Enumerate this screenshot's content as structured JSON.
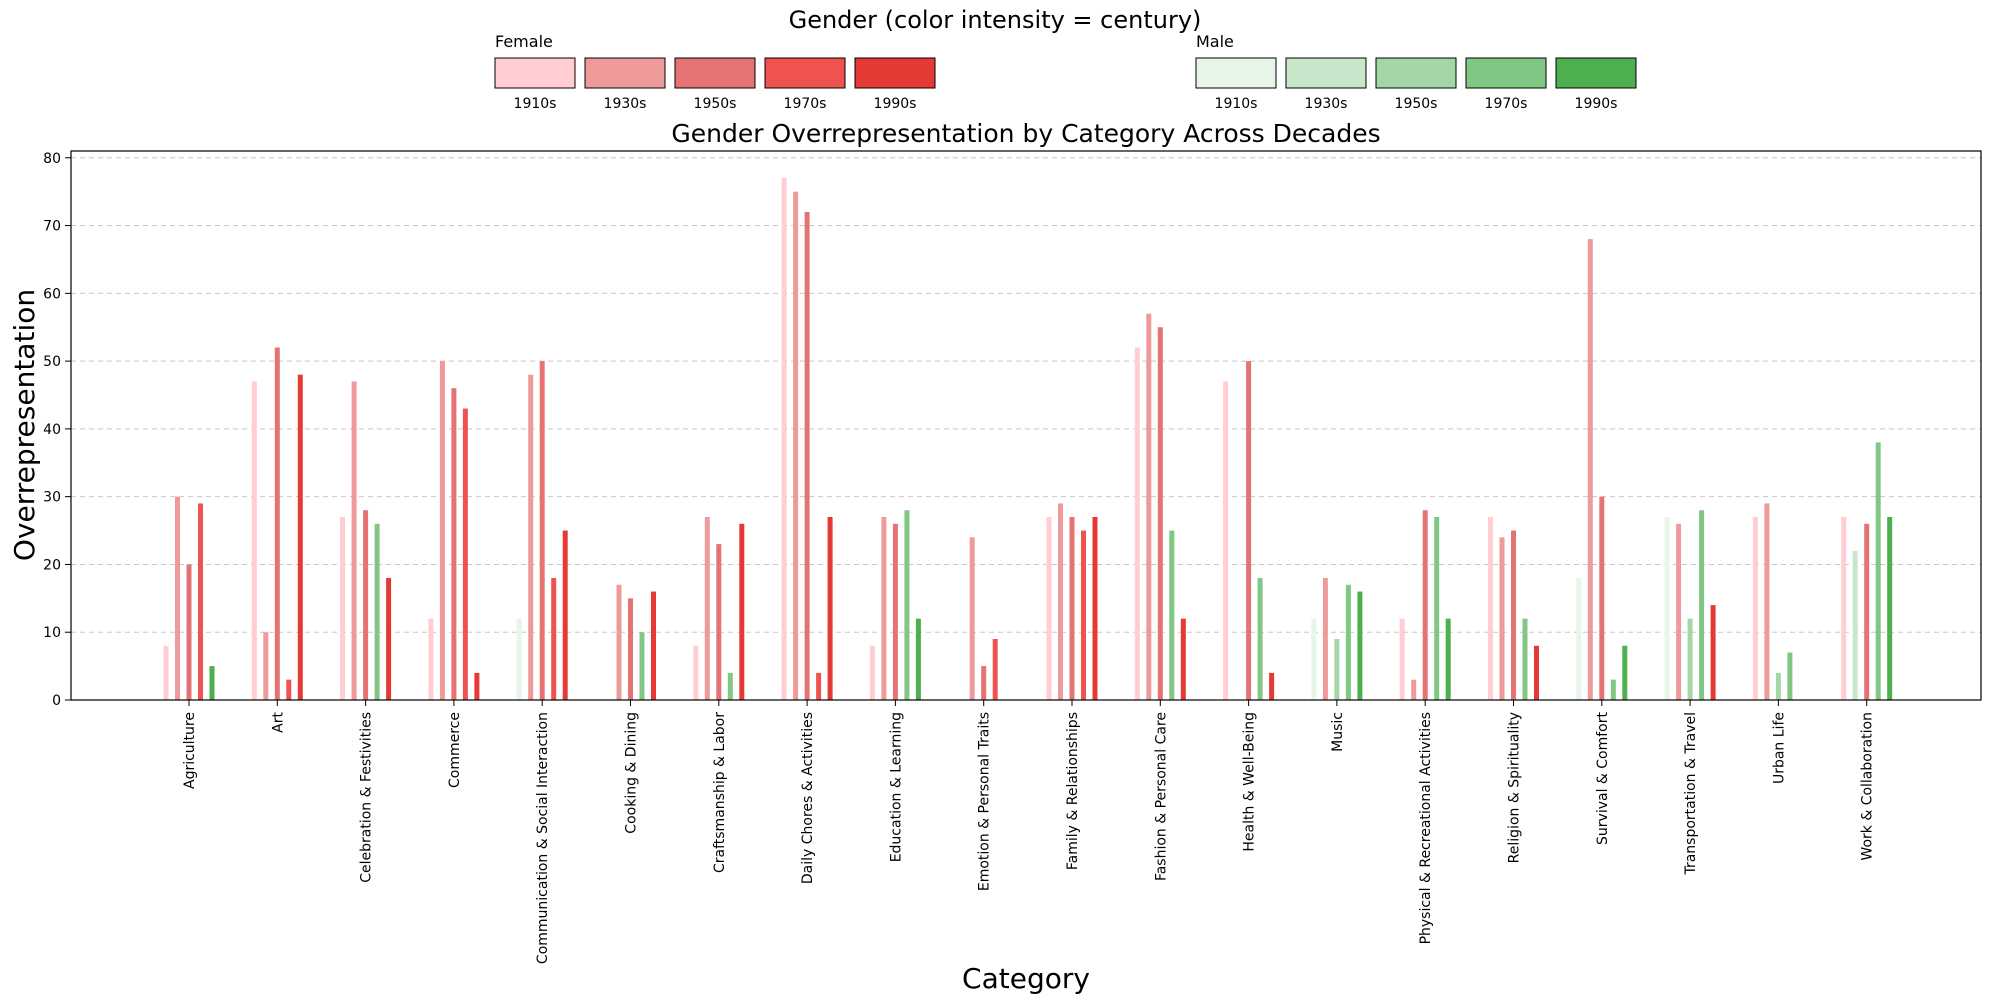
{
  "chart_data": {
    "type": "bar",
    "title": "Gender Overrepresentation by Category Across Decades",
    "xlabel": "Category",
    "ylabel": "Overrepresentation",
    "ylim": [
      0,
      81
    ],
    "yticks": [
      0,
      10,
      20,
      30,
      40,
      50,
      60,
      70,
      80
    ],
    "grid": true,
    "legend": {
      "title": "Gender (color intensity = century)",
      "groups": [
        {
          "name": "Female",
          "decades": [
            "1910s",
            "1930s",
            "1950s",
            "1970s",
            "1990s"
          ],
          "colors": [
            "#ffcdd2",
            "#ef9a9a",
            "#e57373",
            "#ef5350",
            "#e53935"
          ]
        },
        {
          "name": "Male",
          "decades": [
            "1910s",
            "1930s",
            "1950s",
            "1970s",
            "1990s"
          ],
          "colors": [
            "#e8f5e9",
            "#c8e6c9",
            "#a5d6a7",
            "#81c784",
            "#4caf50"
          ]
        }
      ]
    },
    "series_order": [
      "1910s",
      "1930s",
      "1950s",
      "1970s",
      "1990s"
    ],
    "categories": [
      {
        "name": "Agriculture",
        "bars": [
          {
            "g": "F",
            "v": 8
          },
          {
            "g": "F",
            "v": 30
          },
          {
            "g": "F",
            "v": 20
          },
          {
            "g": "F",
            "v": 29
          },
          {
            "g": "M",
            "v": 5
          }
        ]
      },
      {
        "name": "Art",
        "bars": [
          {
            "g": "F",
            "v": 47
          },
          {
            "g": "F",
            "v": 10
          },
          {
            "g": "F",
            "v": 52
          },
          {
            "g": "F",
            "v": 3
          },
          {
            "g": "F",
            "v": 48
          }
        ]
      },
      {
        "name": "Celebration & Festivities",
        "bars": [
          {
            "g": "F",
            "v": 27
          },
          {
            "g": "F",
            "v": 47
          },
          {
            "g": "F",
            "v": 28
          },
          {
            "g": "M",
            "v": 26
          },
          {
            "g": "F",
            "v": 18
          }
        ]
      },
      {
        "name": "Commerce",
        "bars": [
          {
            "g": "F",
            "v": 12
          },
          {
            "g": "F",
            "v": 50
          },
          {
            "g": "F",
            "v": 46
          },
          {
            "g": "F",
            "v": 43
          },
          {
            "g": "F",
            "v": 4
          }
        ]
      },
      {
        "name": "Communication & Social Interaction",
        "bars": [
          {
            "g": "M",
            "v": 12
          },
          {
            "g": "F",
            "v": 48
          },
          {
            "g": "F",
            "v": 50
          },
          {
            "g": "F",
            "v": 18
          },
          {
            "g": "F",
            "v": 25
          }
        ]
      },
      {
        "name": "Cooking & Dining",
        "bars": [
          {
            "g": "F",
            "v": 0
          },
          {
            "g": "F",
            "v": 17
          },
          {
            "g": "F",
            "v": 15
          },
          {
            "g": "M",
            "v": 10
          },
          {
            "g": "F",
            "v": 16
          }
        ]
      },
      {
        "name": "Craftsmanship & Labor",
        "bars": [
          {
            "g": "F",
            "v": 8
          },
          {
            "g": "F",
            "v": 27
          },
          {
            "g": "F",
            "v": 23
          },
          {
            "g": "M",
            "v": 4
          },
          {
            "g": "F",
            "v": 26
          }
        ]
      },
      {
        "name": "Daily Chores & Activities",
        "bars": [
          {
            "g": "F",
            "v": 77
          },
          {
            "g": "F",
            "v": 75
          },
          {
            "g": "F",
            "v": 72
          },
          {
            "g": "F",
            "v": 4
          },
          {
            "g": "F",
            "v": 27
          }
        ]
      },
      {
        "name": "Education & Learning",
        "bars": [
          {
            "g": "F",
            "v": 8
          },
          {
            "g": "F",
            "v": 27
          },
          {
            "g": "F",
            "v": 26
          },
          {
            "g": "M",
            "v": 28
          },
          {
            "g": "M",
            "v": 12
          }
        ]
      },
      {
        "name": "Emotion & Personal Traits",
        "bars": [
          {
            "g": "F",
            "v": 0
          },
          {
            "g": "F",
            "v": 24
          },
          {
            "g": "F",
            "v": 5
          },
          {
            "g": "F",
            "v": 9
          },
          {
            "g": "F",
            "v": 0
          }
        ]
      },
      {
        "name": "Family & Relationships",
        "bars": [
          {
            "g": "F",
            "v": 27
          },
          {
            "g": "F",
            "v": 29
          },
          {
            "g": "F",
            "v": 27
          },
          {
            "g": "F",
            "v": 25
          },
          {
            "g": "F",
            "v": 27
          }
        ]
      },
      {
        "name": "Fashion & Personal Care",
        "bars": [
          {
            "g": "F",
            "v": 52
          },
          {
            "g": "F",
            "v": 57
          },
          {
            "g": "F",
            "v": 55
          },
          {
            "g": "M",
            "v": 25
          },
          {
            "g": "F",
            "v": 12
          }
        ]
      },
      {
        "name": "Health & Well-Being",
        "bars": [
          {
            "g": "F",
            "v": 47
          },
          {
            "g": "F",
            "v": 0
          },
          {
            "g": "F",
            "v": 50
          },
          {
            "g": "M",
            "v": 18
          },
          {
            "g": "F",
            "v": 4
          }
        ]
      },
      {
        "name": "Music",
        "bars": [
          {
            "g": "M",
            "v": 12
          },
          {
            "g": "F",
            "v": 18
          },
          {
            "g": "M",
            "v": 9
          },
          {
            "g": "M",
            "v": 17
          },
          {
            "g": "M",
            "v": 16
          }
        ]
      },
      {
        "name": "Physical & Recreational Activities",
        "bars": [
          {
            "g": "F",
            "v": 12
          },
          {
            "g": "F",
            "v": 3
          },
          {
            "g": "F",
            "v": 28
          },
          {
            "g": "M",
            "v": 27
          },
          {
            "g": "M",
            "v": 12
          }
        ]
      },
      {
        "name": "Religion & Spirituality",
        "bars": [
          {
            "g": "F",
            "v": 27
          },
          {
            "g": "F",
            "v": 24
          },
          {
            "g": "F",
            "v": 25
          },
          {
            "g": "M",
            "v": 12
          },
          {
            "g": "F",
            "v": 8
          }
        ]
      },
      {
        "name": "Survival & Comfort",
        "bars": [
          {
            "g": "M",
            "v": 18
          },
          {
            "g": "F",
            "v": 68
          },
          {
            "g": "F",
            "v": 30
          },
          {
            "g": "M",
            "v": 3
          },
          {
            "g": "M",
            "v": 8
          }
        ]
      },
      {
        "name": "Transportation & Travel",
        "bars": [
          {
            "g": "M",
            "v": 27
          },
          {
            "g": "F",
            "v": 26
          },
          {
            "g": "M",
            "v": 12
          },
          {
            "g": "M",
            "v": 28
          },
          {
            "g": "F",
            "v": 14
          }
        ]
      },
      {
        "name": "Urban Life",
        "bars": [
          {
            "g": "F",
            "v": 27
          },
          {
            "g": "F",
            "v": 29
          },
          {
            "g": "M",
            "v": 4
          },
          {
            "g": "M",
            "v": 7
          },
          {
            "g": "F",
            "v": 0
          }
        ]
      },
      {
        "name": "Work & Collaboration",
        "bars": [
          {
            "g": "F",
            "v": 27
          },
          {
            "g": "M",
            "v": 22
          },
          {
            "g": "F",
            "v": 26
          },
          {
            "g": "M",
            "v": 38
          },
          {
            "g": "M",
            "v": 27
          }
        ]
      }
    ]
  }
}
